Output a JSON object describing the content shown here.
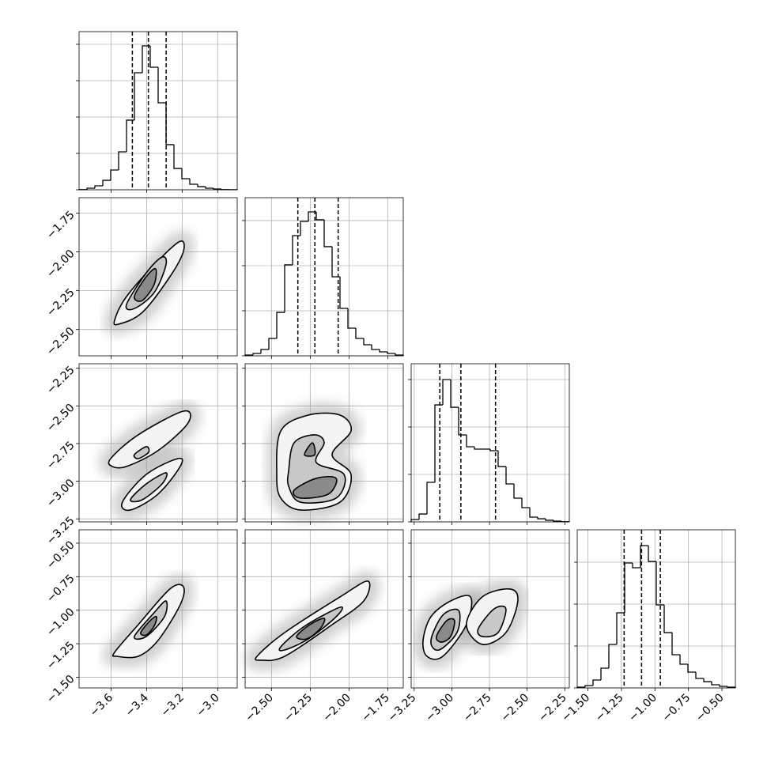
{
  "chart_data": {
    "type": "corner",
    "parameters": [
      {
        "lim": [
          -3.78,
          -2.89
        ],
        "ticks": [
          {
            "value": -3.6,
            "label": "−3.6"
          },
          {
            "value": -3.4,
            "label": "−3.4"
          },
          {
            "value": -3.2,
            "label": "−3.2"
          },
          {
            "value": -3.0,
            "label": "−3.0"
          }
        ],
        "bins": [
          -3.78,
          -3.7355,
          -3.691,
          -3.6465,
          -3.602,
          -3.5575,
          -3.513,
          -3.4685,
          -3.424,
          -3.3795,
          -3.335,
          -3.2905,
          -3.246,
          -3.2015,
          -3.157,
          -3.1125,
          -3.068,
          -3.0235,
          -2.979,
          -2.9345,
          -2.89
        ],
        "counts": [
          3,
          22,
          54,
          130,
          272,
          522,
          957,
          1609,
          1978,
          1685,
          1196,
          620,
          293,
          152,
          76,
          43,
          22,
          11,
          3,
          1
        ],
        "quantiles": [
          -3.48,
          -3.39,
          -3.29
        ],
        "hist_ylim": [
          0,
          2174
        ],
        "hist_yticks": [
          0,
          500,
          1000,
          1500,
          2000
        ]
      },
      {
        "lim": [
          -2.67,
          -1.65
        ],
        "ticks": [
          {
            "value": -2.5,
            "label": "−2.50"
          },
          {
            "value": -2.25,
            "label": "−2.25"
          },
          {
            "value": -2.0,
            "label": "−2.00"
          },
          {
            "value": -1.75,
            "label": "−1.75"
          }
        ],
        "bins": [
          -2.67,
          -2.619,
          -2.568,
          -2.517,
          -2.466,
          -2.415,
          -2.364,
          -2.313,
          -2.262,
          -2.211,
          -2.16,
          -2.109,
          -2.058,
          -2.007,
          -1.956,
          -1.905,
          -1.854,
          -1.803,
          -1.752,
          -1.701,
          -1.65
        ],
        "counts": [
          9,
          26,
          70,
          193,
          482,
          1009,
          1333,
          1491,
          1596,
          1509,
          1211,
          877,
          526,
          307,
          193,
          123,
          70,
          44,
          26,
          9
        ],
        "quantiles": [
          -2.33,
          -2.22,
          -2.07
        ],
        "hist_ylim": [
          0,
          1754
        ],
        "hist_yticks": [
          0,
          500,
          1000,
          1500
        ]
      },
      {
        "lim": [
          -3.27,
          -2.22
        ],
        "ticks": [
          {
            "value": -3.25,
            "label": "−3.25"
          },
          {
            "value": -3.0,
            "label": "−3.00"
          },
          {
            "value": -2.75,
            "label": "−2.75"
          },
          {
            "value": -2.5,
            "label": "−2.50"
          },
          {
            "value": -2.25,
            "label": "−2.25"
          }
        ],
        "bins": [
          -3.27,
          -3.2175,
          -3.165,
          -3.1125,
          -3.06,
          -3.0075,
          -2.955,
          -2.9025,
          -2.85,
          -2.7975,
          -2.745,
          -2.6925,
          -2.64,
          -2.5875,
          -2.535,
          -2.4825,
          -2.43,
          -2.3775,
          -2.325,
          -2.2725,
          -2.22
        ],
        "counts": [
          25,
          83,
          417,
          1233,
          1500,
          1208,
          917,
          792,
          767,
          767,
          750,
          583,
          400,
          250,
          150,
          50,
          33,
          17,
          8,
          2
        ],
        "quantiles": [
          -3.08,
          -2.94,
          -2.71
        ],
        "hist_ylim": [
          0,
          1667
        ],
        "hist_yticks": [
          0,
          500,
          1000,
          1500
        ]
      },
      {
        "lim": [
          -1.58,
          -0.4
        ],
        "ticks": [
          {
            "value": -1.5,
            "label": "−1.50"
          },
          {
            "value": -1.25,
            "label": "−1.25"
          },
          {
            "value": -1.0,
            "label": "−1.00"
          },
          {
            "value": -0.75,
            "label": "−0.75"
          },
          {
            "value": -0.5,
            "label": "−0.50"
          }
        ],
        "bins": [
          -1.58,
          -1.521,
          -1.462,
          -1.403,
          -1.344,
          -1.285,
          -1.226,
          -1.167,
          -1.108,
          -1.049,
          -0.99,
          -0.931,
          -0.872,
          -0.813,
          -0.754,
          -0.695,
          -0.636,
          -0.577,
          -0.518,
          -0.459,
          -0.4
        ],
        "counts": [
          9,
          28,
          94,
          236,
          519,
          896,
          1491,
          1434,
          1698,
          1509,
          991,
          660,
          396,
          283,
          189,
          113,
          75,
          38,
          19,
          9
        ],
        "quantiles": [
          -1.23,
          -1.1,
          -0.96
        ],
        "hist_ylim": [
          0,
          1887
        ],
        "hist_yticks": [
          0,
          500,
          1000,
          1500
        ]
      }
    ],
    "pairs": [
      {
        "x": 0,
        "y": 1,
        "contours": [
          [
            [
              [
                -3.58,
                -2.44
              ],
              [
                -3.513,
                -2.288
              ],
              [
                -3.336,
                -2.058
              ],
              [
                -3.211,
                -1.931
              ],
              [
                -3.193,
                -1.997
              ],
              [
                -3.269,
                -2.16
              ],
              [
                -3.424,
                -2.39
              ],
              [
                -3.558,
                -2.466
              ]
            ]
          ],
          [
            [
              [
                -3.513,
                -2.339
              ],
              [
                -3.402,
                -2.135
              ],
              [
                -3.313,
                -2.033
              ],
              [
                -3.291,
                -2.084
              ],
              [
                -3.358,
                -2.263
              ],
              [
                -3.469,
                -2.365
              ]
            ]
          ],
          [
            [
              [
                -3.469,
                -2.288
              ],
              [
                -3.402,
                -2.16
              ],
              [
                -3.349,
                -2.109
              ],
              [
                -3.358,
                -2.211
              ],
              [
                -3.424,
                -2.313
              ]
            ]
          ]
        ]
      },
      {
        "x": 0,
        "y": 2,
        "contours": [
          [
            [
              [
                -3.602,
                -2.85
              ],
              [
                -3.447,
                -2.692
              ],
              [
                -3.193,
                -2.535
              ],
              [
                -3.167,
                -2.614
              ],
              [
                -3.336,
                -2.797
              ],
              [
                -3.513,
                -2.902
              ],
              [
                -3.593,
                -2.902
              ]
            ],
            [
              [
                -3.536,
                -3.139
              ],
              [
                -3.402,
                -2.955
              ],
              [
                -3.224,
                -2.85
              ],
              [
                -3.211,
                -2.902
              ],
              [
                -3.336,
                -3.086
              ],
              [
                -3.491,
                -3.191
              ]
            ]
          ],
          [
            [
              [
                -3.469,
                -2.824
              ],
              [
                -3.402,
                -2.771
              ],
              [
                -3.389,
                -2.808
              ],
              [
                -3.447,
                -2.85
              ]
            ],
            [
              [
                -3.491,
                -3.123
              ],
              [
                -3.402,
                -3.018
              ],
              [
                -3.291,
                -2.944
              ],
              [
                -3.313,
                -3.018
              ],
              [
                -3.424,
                -3.123
              ]
            ]
          ]
        ]
      },
      {
        "x": 0,
        "y": 3,
        "contours": [
          [
            [
              [
                -3.58,
                -1.314
              ],
              [
                -3.447,
                -1.108
              ],
              [
                -3.269,
                -0.842
              ],
              [
                -3.193,
                -0.825
              ],
              [
                -3.211,
                -0.96
              ],
              [
                -3.336,
                -1.226
              ],
              [
                -3.447,
                -1.344
              ],
              [
                -3.567,
                -1.344
              ]
            ]
          ],
          [
            [
              [
                -3.469,
                -1.196
              ],
              [
                -3.358,
                -1.019
              ],
              [
                -3.291,
                -0.931
              ],
              [
                -3.3,
                -1.049
              ],
              [
                -3.402,
                -1.196
              ]
            ]
          ],
          [
            [
              [
                -3.433,
                -1.167
              ],
              [
                -3.38,
                -1.078
              ],
              [
                -3.344,
                -1.049
              ],
              [
                -3.358,
                -1.12
              ],
              [
                -3.402,
                -1.185
              ]
            ]
          ]
        ]
      },
      {
        "x": 1,
        "y": 2,
        "contours": [
          [
            [
              [
                -2.466,
                -2.955
              ],
              [
                -2.44,
                -2.666
              ],
              [
                -2.262,
                -2.561
              ],
              [
                -2.058,
                -2.561
              ],
              [
                -1.987,
                -2.666
              ],
              [
                -2.109,
                -2.824
              ],
              [
                -1.987,
                -2.955
              ],
              [
                -2.058,
                -3.139
              ],
              [
                -2.313,
                -3.191
              ],
              [
                -2.44,
                -3.112
              ]
            ]
          ],
          [
            [
              [
                -2.389,
                -2.929
              ],
              [
                -2.354,
                -2.745
              ],
              [
                -2.221,
                -2.692
              ],
              [
                -2.16,
                -2.745
              ],
              [
                -2.211,
                -2.876
              ],
              [
                -2.032,
                -2.955
              ],
              [
                -2.083,
                -3.112
              ],
              [
                -2.313,
                -3.139
              ],
              [
                -2.389,
                -3.034
              ]
            ]
          ],
          [
            [
              [
                -2.287,
                -2.824
              ],
              [
                -2.236,
                -2.745
              ],
              [
                -2.221,
                -2.824
              ]
            ],
            [
              [
                -2.354,
                -3.06
              ],
              [
                -2.211,
                -2.981
              ],
              [
                -2.083,
                -2.981
              ],
              [
                -2.134,
                -3.086
              ],
              [
                -2.313,
                -3.112
              ]
            ]
          ]
        ]
      },
      {
        "x": 1,
        "y": 3,
        "contours": [
          [
            [
              [
                -2.593,
                -1.344
              ],
              [
                -2.415,
                -1.167
              ],
              [
                -2.058,
                -0.901
              ],
              [
                -1.879,
                -0.783
              ],
              [
                -1.905,
                -0.931
              ],
              [
                -2.109,
                -1.108
              ],
              [
                -2.415,
                -1.344
              ],
              [
                -2.567,
                -1.373
              ]
            ]
          ],
          [
            [
              [
                -2.44,
                -1.273
              ],
              [
                -2.287,
                -1.12
              ],
              [
                -2.058,
                -0.978
              ],
              [
                -2.083,
                -1.049
              ],
              [
                -2.262,
                -1.214
              ],
              [
                -2.415,
                -1.297
              ]
            ]
          ],
          [
            [
              [
                -2.338,
                -1.196
              ],
              [
                -2.252,
                -1.108
              ],
              [
                -2.16,
                -1.061
              ],
              [
                -2.185,
                -1.137
              ],
              [
                -2.272,
                -1.214
              ]
            ]
          ]
        ]
      },
      {
        "x": 2,
        "y": 3,
        "contours": [
          [
            [
              [
                -3.191,
                -1.226
              ],
              [
                -3.139,
                -1.049
              ],
              [
                -3.008,
                -0.931
              ],
              [
                -2.876,
                -0.901
              ],
              [
                -2.903,
                -1.108
              ],
              [
                -3.06,
                -1.344
              ],
              [
                -3.165,
                -1.344
              ]
            ],
            [
              [
                -2.903,
                -1.108
              ],
              [
                -2.798,
                -0.901
              ],
              [
                -2.614,
                -0.842
              ],
              [
                -2.562,
                -0.931
              ],
              [
                -2.641,
                -1.167
              ],
              [
                -2.798,
                -1.255
              ]
            ]
          ],
          [
            [
              [
                -3.139,
                -1.226
              ],
              [
                -3.06,
                -1.037
              ],
              [
                -2.955,
                -1.002
              ],
              [
                -2.966,
                -1.167
              ],
              [
                -3.086,
                -1.297
              ]
            ],
            [
              [
                -2.824,
                -1.137
              ],
              [
                -2.719,
                -0.99
              ],
              [
                -2.641,
                -0.99
              ],
              [
                -2.693,
                -1.167
              ],
              [
                -2.798,
                -1.196
              ]
            ]
          ],
          [
            [
              [
                -3.102,
                -1.196
              ],
              [
                -3.034,
                -1.078
              ],
              [
                -2.982,
                -1.078
              ],
              [
                -3.008,
                -1.196
              ],
              [
                -3.07,
                -1.238
              ]
            ]
          ]
        ]
      }
    ]
  }
}
